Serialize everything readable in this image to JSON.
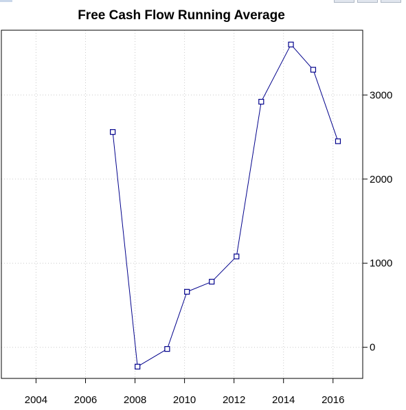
{
  "chart_data": {
    "type": "line",
    "title": "Free Cash Flow Running Average",
    "xlabel": "",
    "ylabel": "",
    "x": [
      2007.1,
      2008.1,
      2009.3,
      2010.1,
      2011.1,
      2012.1,
      2013.1,
      2014.3,
      2015.2,
      2016.2
    ],
    "series": [
      {
        "values": [
          2560,
          -230,
          -20,
          660,
          780,
          1080,
          2920,
          3600,
          3300,
          2450
        ]
      }
    ],
    "xlim": [
      2002.6,
      2017.2
    ],
    "ylim": [
      -370,
      3770
    ],
    "x_ticks": [
      2004,
      2006,
      2008,
      2010,
      2012,
      2014,
      2016
    ],
    "y_ticks": [
      0,
      1000,
      2000,
      3000
    ],
    "x_tick_labels": [
      "2004",
      "2006",
      "2008",
      "2010",
      "2012",
      "2014",
      "2016"
    ],
    "y_tick_labels": [
      "0",
      "1000",
      "2000",
      "3000"
    ],
    "grid": true,
    "y_axis_side": "right",
    "marker": "open-square",
    "colors": {
      "series": "#00008b",
      "grid": "#c8c8c8",
      "axis": "#000000"
    }
  }
}
